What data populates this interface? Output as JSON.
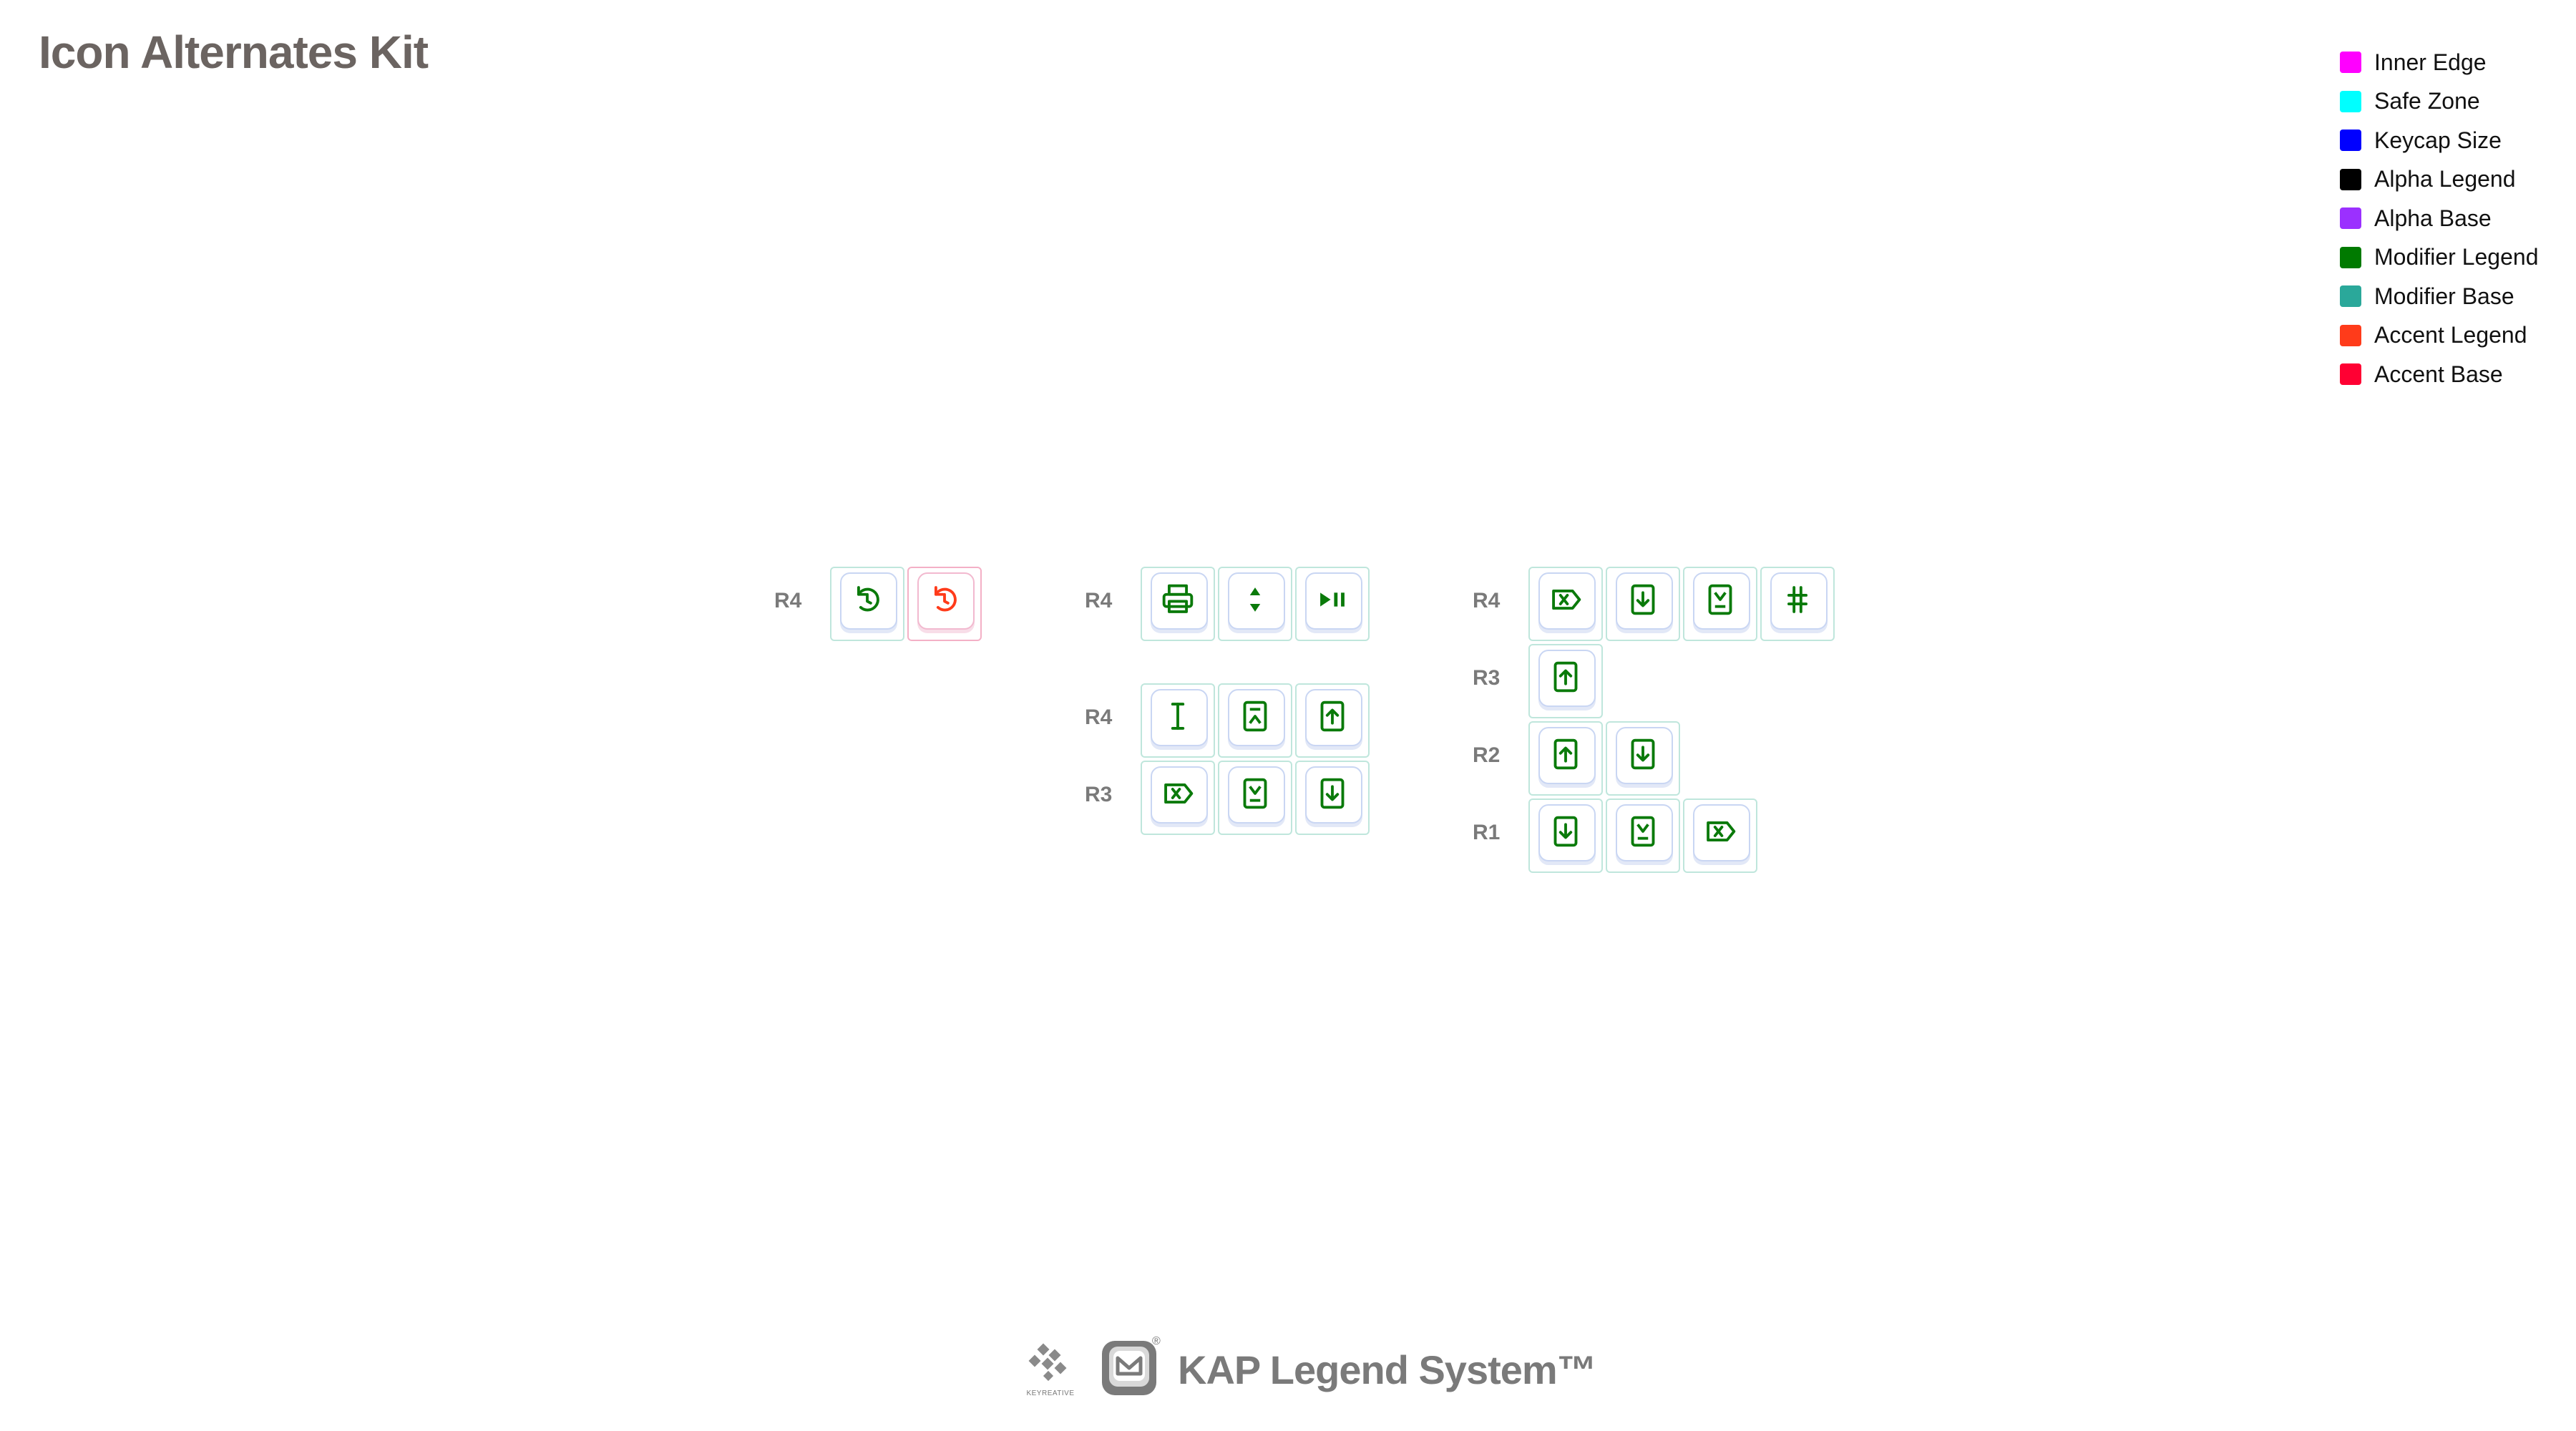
{
  "title": "Icon Alternates Kit",
  "legend": [
    {
      "label": "Inner Edge",
      "color": "#ff00ff"
    },
    {
      "label": "Safe Zone",
      "color": "#00ffff"
    },
    {
      "label": "Keycap Size",
      "color": "#0000ff"
    },
    {
      "label": "Alpha Legend",
      "color": "#000000"
    },
    {
      "label": "Alpha Base",
      "color": "#9b30ff"
    },
    {
      "label": "Modifier Legend",
      "color": "#007a00"
    },
    {
      "label": "Modifier Base",
      "color": "#2aa89a"
    },
    {
      "label": "Accent Legend",
      "color": "#ff3b1a"
    },
    {
      "label": "Accent Base",
      "color": "#ff0033"
    }
  ],
  "colors": {
    "modifier_legend": "#0a7a0a",
    "accent_legend": "#ff3b1a"
  },
  "row_labels": {
    "g1_r1": "R4",
    "g2_r1": "R4",
    "g2_r2": "R4",
    "g2_r3": "R3",
    "g3_r1": "R4",
    "g3_r2": "R3",
    "g3_r3": "R2",
    "g3_r4": "R1"
  },
  "footer": {
    "brand_small": "KEYREATIVE",
    "registered": "®",
    "system_name": "KAP Legend System™"
  }
}
